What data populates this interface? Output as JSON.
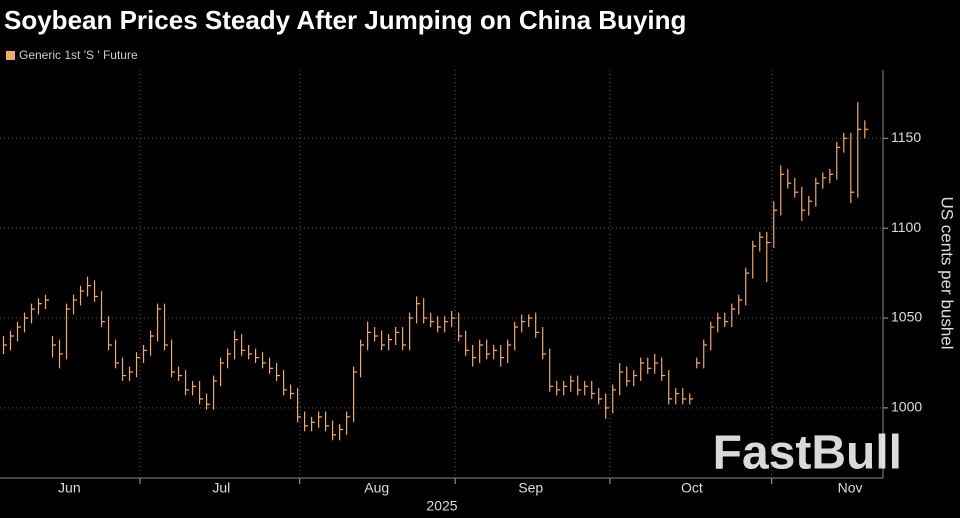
{
  "chart_data": {
    "type": "hlc",
    "title": "Soybean Prices Steady After Jumping on China Buying",
    "y_label": "US cents per bushel",
    "x_label": "2025",
    "watermark": "FastBull",
    "grid": true,
    "xlim": [
      -0.5,
      125.6
    ],
    "xticks": [
      {
        "value": 9.4,
        "label": "Jun"
      },
      {
        "value": 31.1,
        "label": "Jul"
      },
      {
        "value": 53.3,
        "label": "Aug"
      },
      {
        "value": 75.3,
        "label": "Sep"
      },
      {
        "value": 98.3,
        "label": "Oct"
      },
      {
        "value": 120.9,
        "label": "Nov"
      }
    ],
    "xgrid": [
      19.5,
      42.3,
      64.5,
      86.6,
      109.7
    ],
    "ylim": [
      961,
      1188
    ],
    "yticks": [
      1000,
      1050,
      1100,
      1150
    ],
    "series": [
      {
        "name": "Generic 1st 'S ' Future",
        "color": "#f2a96b",
        "high": [
          1040,
          1043,
          1048,
          1053,
          1058,
          1061,
          1063,
          1040,
          1038,
          1058,
          1063,
          1068,
          1073,
          1071,
          1065,
          1051,
          1038,
          1028,
          1023,
          1031,
          1035,
          1043,
          1058,
          1058,
          1038,
          1023,
          1021,
          1015,
          1015,
          1008,
          1018,
          1028,
          1033,
          1043,
          1041,
          1035,
          1033,
          1031,
          1028,
          1025,
          1021,
          1013,
          1011,
          998,
          995,
          998,
          998,
          993,
          991,
          998,
          1023,
          1038,
          1048,
          1045,
          1043,
          1041,
          1045,
          1045,
          1053,
          1062,
          1061,
          1053,
          1051,
          1051,
          1054,
          1053,
          1043,
          1035,
          1038,
          1038,
          1035,
          1035,
          1038,
          1048,
          1052,
          1052,
          1053,
          1045,
          1033,
          1015,
          1015,
          1018,
          1018,
          1015,
          1015,
          1011,
          1008,
          1013,
          1025,
          1023,
          1021,
          1028,
          1028,
          1030,
          1028,
          1021,
          1011,
          1011,
          1008,
          1028,
          1038,
          1048,
          1053,
          1053,
          1058,
          1063,
          1078,
          1093,
          1098,
          1098,
          1115,
          1135,
          1133,
          1128,
          1123,
          1118,
          1128,
          1131,
          1133,
          1148,
          1153,
          1153,
          1170,
          1160
        ],
        "low": [
          1030,
          1032,
          1037,
          1042,
          1047,
          1052,
          1055,
          1028,
          1022,
          1027,
          1052,
          1057,
          1062,
          1059,
          1045,
          1032,
          1022,
          1015,
          1015,
          1017,
          1025,
          1029,
          1037,
          1032,
          1017,
          1015,
          1007,
          1007,
          1002,
          999,
          999,
          1012,
          1022,
          1027,
          1029,
          1027,
          1025,
          1022,
          1019,
          1015,
          1007,
          1005,
          992,
          987,
          987,
          989,
          987,
          982,
          982,
          985,
          992,
          1017,
          1032,
          1037,
          1032,
          1032,
          1035,
          1032,
          1032,
          1047,
          1047,
          1045,
          1042,
          1042,
          1045,
          1037,
          1029,
          1023,
          1025,
          1027,
          1027,
          1023,
          1025,
          1032,
          1042,
          1045,
          1039,
          1027,
          1009,
          1007,
          1007,
          1009,
          1007,
          1007,
          1005,
          1002,
          994,
          997,
          1007,
          1012,
          1012,
          1015,
          1019,
          1019,
          1015,
          1002,
          1002,
          1002,
          1002,
          1022,
          1022,
          1032,
          1042,
          1045,
          1045,
          1052,
          1057,
          1072,
          1087,
          1070,
          1089,
          1107,
          1122,
          1117,
          1104,
          1107,
          1112,
          1122,
          1125,
          1127,
          1142,
          1114,
          1117,
          1150
        ],
        "close": [
          1035,
          1040,
          1045,
          1050,
          1055,
          1058,
          1060,
          1035,
          1030,
          1055,
          1060,
          1065,
          1068,
          1062,
          1048,
          1035,
          1025,
          1018,
          1020,
          1028,
          1032,
          1040,
          1055,
          1035,
          1020,
          1018,
          1010,
          1012,
          1005,
          1002,
          1015,
          1025,
          1030,
          1038,
          1032,
          1030,
          1028,
          1025,
          1022,
          1018,
          1010,
          1008,
          995,
          990,
          992,
          995,
          990,
          985,
          988,
          995,
          1020,
          1035,
          1042,
          1040,
          1035,
          1038,
          1042,
          1035,
          1050,
          1058,
          1050,
          1048,
          1045,
          1048,
          1050,
          1040,
          1032,
          1028,
          1035,
          1030,
          1032,
          1028,
          1035,
          1045,
          1048,
          1050,
          1042,
          1030,
          1012,
          1010,
          1012,
          1015,
          1010,
          1012,
          1008,
          1005,
          1000,
          1010,
          1020,
          1015,
          1018,
          1025,
          1022,
          1025,
          1018,
          1005,
          1008,
          1005,
          1005,
          1025,
          1035,
          1045,
          1050,
          1048,
          1055,
          1060,
          1075,
          1090,
          1095,
          1092,
          1110,
          1130,
          1125,
          1120,
          1110,
          1115,
          1125,
          1128,
          1130,
          1145,
          1150,
          1120,
          1155,
          1155
        ]
      }
    ]
  }
}
